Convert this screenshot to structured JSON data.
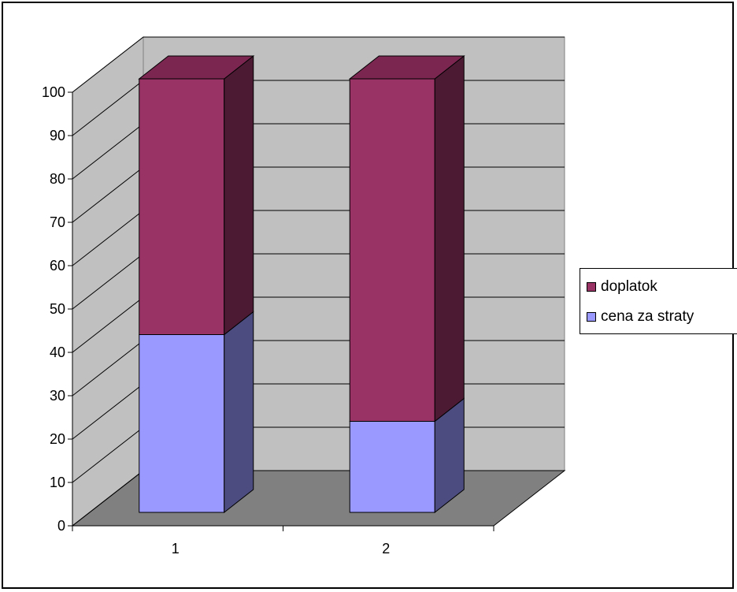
{
  "chart_data": {
    "type": "bar",
    "stacked": true,
    "three_d": true,
    "categories": [
      "1",
      "2"
    ],
    "series": [
      {
        "name": "cena za straty",
        "values": [
          41,
          21
        ],
        "color": "#9999ff",
        "side_color": "#4c4c80"
      },
      {
        "name": "doplatok",
        "values": [
          59,
          79
        ],
        "color": "#993366",
        "side_color": "#4d1a33"
      }
    ],
    "ylim": [
      0,
      100
    ],
    "yticks": [
      0,
      10,
      20,
      30,
      40,
      50,
      60,
      70,
      80,
      90,
      100
    ],
    "grid": true,
    "legend_position": "right",
    "wall_color": "#c0c0c0",
    "floor_color": "#808080",
    "title": "",
    "xlabel": "",
    "ylabel": ""
  }
}
